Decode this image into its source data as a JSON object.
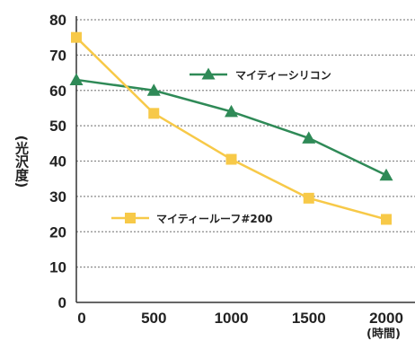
{
  "chart_data": {
    "type": "line",
    "x": [
      0,
      500,
      1000,
      1500,
      2000
    ],
    "x_ticks": [
      "0",
      "500",
      "1000",
      "1500",
      "2000"
    ],
    "y_ticks": [
      "0",
      "10",
      "20",
      "30",
      "40",
      "50",
      "60",
      "70",
      "80"
    ],
    "xlabel": "(時間)",
    "ylabel": "(光沢度)",
    "ylim": [
      0,
      80
    ],
    "xlim": [
      0,
      2000
    ],
    "grid": true,
    "series": [
      {
        "name": "マイティーシリコン",
        "values": [
          63,
          60,
          54,
          46.5,
          36
        ],
        "color": "#2f8a57",
        "marker": "triangle"
      },
      {
        "name": "マイティールーフ#200",
        "values": [
          75,
          53.5,
          40.5,
          29.5,
          23.5
        ],
        "color": "#f7c948",
        "marker": "square"
      }
    ]
  }
}
